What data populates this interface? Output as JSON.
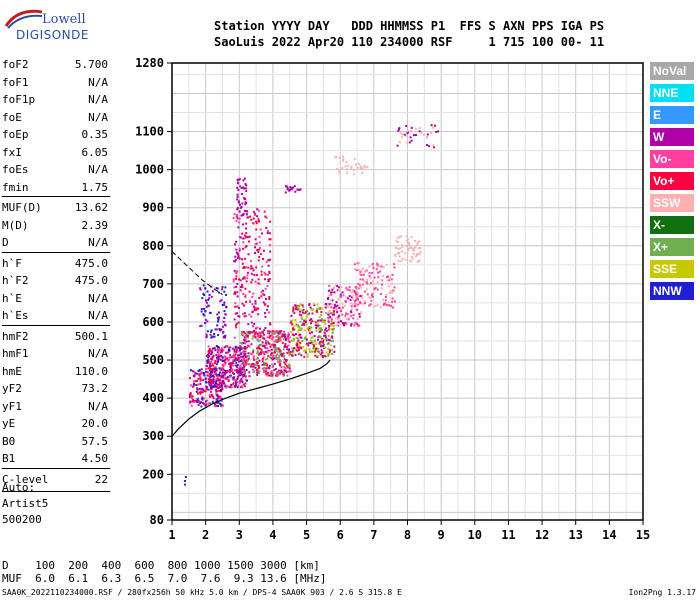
{
  "logo": {
    "line1": "Lowell",
    "line2": "DIGISONDE"
  },
  "header": {
    "line1": "Station YYYY DAY   DDD HHMMSS P1  FFS S AXN PPS IGA PS",
    "line2": "SaoLuis 2022 Apr20 110 234000 RSF     1 715 100 00- 11"
  },
  "params": [
    {
      "name": "foF2",
      "value": "5.700"
    },
    {
      "name": "foF1",
      "value": "N/A"
    },
    {
      "name": "foF1p",
      "value": "N/A"
    },
    {
      "name": "foE",
      "value": "N/A"
    },
    {
      "name": "foEp",
      "value": "0.35"
    },
    {
      "name": "fxI",
      "value": "6.05"
    },
    {
      "name": "foEs",
      "value": "N/A"
    },
    {
      "name": "fmin",
      "value": "1.75"
    },
    {
      "name": "MUF(D)",
      "value": "13.62"
    },
    {
      "name": "M(D)",
      "value": "2.39"
    },
    {
      "name": "D",
      "value": "N/A"
    },
    {
      "name": "h`F",
      "value": "475.0"
    },
    {
      "name": "h`F2",
      "value": "475.0"
    },
    {
      "name": "h`E",
      "value": "N/A"
    },
    {
      "name": "h`Es",
      "value": "N/A"
    },
    {
      "name": "hmF2",
      "value": "500.1"
    },
    {
      "name": "hmF1",
      "value": "N/A"
    },
    {
      "name": "hmE",
      "value": "110.0"
    },
    {
      "name": "yF2",
      "value": "73.2"
    },
    {
      "name": "yF1",
      "value": "N/A"
    },
    {
      "name": "yE",
      "value": "20.0"
    },
    {
      "name": "B0",
      "value": "57.5"
    },
    {
      "name": "B1",
      "value": "4.50"
    },
    {
      "name": "C-level",
      "value": "22"
    }
  ],
  "auto": [
    "Auto:",
    "Artist5",
    "500200"
  ],
  "legend": [
    {
      "label": "NoVal",
      "color": "#a8a8a8"
    },
    {
      "label": "NNE",
      "color": "#00e0f0"
    },
    {
      "label": "E",
      "color": "#3399ff"
    },
    {
      "label": "W",
      "color": "#b000a8"
    },
    {
      "label": "Vo-",
      "color": "#ff40a0"
    },
    {
      "label": "Vo+",
      "color": "#ff0040"
    },
    {
      "label": "SSW",
      "color": "#ffb0b0"
    },
    {
      "label": "X-",
      "color": "#107010"
    },
    {
      "label": "X+",
      "color": "#70b050"
    },
    {
      "label": "SSE",
      "color": "#c8c800"
    },
    {
      "label": "NNW",
      "color": "#2020d0"
    }
  ],
  "bottom": {
    "d_line": "D    100  200  400  600  800 1000 1500 3000 [km]",
    "muf_line": "MUF  6.0  6.1  6.3  6.5  7.0  7.6  9.3 13.6 [MHz]"
  },
  "footer": {
    "left": "SAA0K_2022110234000.RSF / 280fx256h 50 kHz 5.0 km / DPS-4 SAA0K 903 / 2.6 S 315.8 E",
    "right": "Ion2Png 1.3.17"
  },
  "chart_data": {
    "type": "scatter",
    "xlabel": "",
    "ylabel": "",
    "xlim": [
      1,
      15
    ],
    "ylim": [
      80,
      1280
    ],
    "xticks": [
      "1",
      "2",
      "3",
      "4",
      "5",
      "6",
      "7",
      "8",
      "9",
      "10",
      "11",
      "12",
      "13",
      "14",
      "15"
    ],
    "yticks": [
      {
        "v": 80,
        "t": "80"
      },
      {
        "v": 200,
        "t": "200"
      },
      {
        "v": 300,
        "t": "300"
      },
      {
        "v": 400,
        "t": "400"
      },
      {
        "v": 500,
        "t": "500"
      },
      {
        "v": 600,
        "t": "600"
      },
      {
        "v": 700,
        "t": "700"
      },
      {
        "v": 800,
        "t": "800"
      },
      {
        "v": 900,
        "t": "900"
      },
      {
        "v": 1000,
        "t": "1000"
      },
      {
        "v": 1100,
        "t": "1100"
      },
      {
        "v": 1280,
        "t": "1280"
      }
    ],
    "grid": true,
    "profile": [
      {
        "f": 1.0,
        "h": 300
      },
      {
        "f": 1.2,
        "h": 320
      },
      {
        "f": 1.5,
        "h": 345
      },
      {
        "f": 1.8,
        "h": 365
      },
      {
        "f": 2.2,
        "h": 385
      },
      {
        "f": 2.6,
        "h": 400
      },
      {
        "f": 3.0,
        "h": 413
      },
      {
        "f": 3.5,
        "h": 425
      },
      {
        "f": 4.0,
        "h": 437
      },
      {
        "f": 4.5,
        "h": 450
      },
      {
        "f": 5.0,
        "h": 465
      },
      {
        "f": 5.4,
        "h": 478
      },
      {
        "f": 5.6,
        "h": 490
      },
      {
        "f": 5.7,
        "h": 500
      }
    ],
    "dashed_profile": [
      {
        "f": 1.0,
        "h": 785
      },
      {
        "f": 1.3,
        "h": 760
      },
      {
        "f": 1.6,
        "h": 735
      },
      {
        "f": 1.9,
        "h": 710
      },
      {
        "f": 2.2,
        "h": 690
      },
      {
        "f": 2.5,
        "h": 672
      }
    ],
    "trace_clusters": [
      {
        "f": [
          1.5,
          2.5
        ],
        "h": [
          380,
          480
        ],
        "n": 220,
        "colors": [
          "#b000a8",
          "#ff0040",
          "#2020d0",
          "#ff40a0"
        ]
      },
      {
        "f": [
          2.0,
          3.2
        ],
        "h": [
          430,
          540
        ],
        "n": 380,
        "colors": [
          "#b000a8",
          "#ff0040",
          "#ff40a0",
          "#2020d0"
        ]
      },
      {
        "f": [
          3.0,
          4.5
        ],
        "h": [
          460,
          580
        ],
        "n": 420,
        "colors": [
          "#ff0040",
          "#b000a8",
          "#ff40a0",
          "#70b050"
        ]
      },
      {
        "f": [
          4.5,
          5.8
        ],
        "h": [
          510,
          650
        ],
        "n": 320,
        "colors": [
          "#b000a8",
          "#ff0040",
          "#70b050",
          "#c8c800"
        ]
      },
      {
        "f": [
          5.6,
          6.6
        ],
        "h": [
          590,
          700
        ],
        "n": 160,
        "colors": [
          "#ff40a0",
          "#b000a8",
          "#ffb0b0"
        ]
      },
      {
        "f": [
          6.4,
          7.6
        ],
        "h": [
          640,
          760
        ],
        "n": 120,
        "colors": [
          "#ffb0b0",
          "#ff40a0"
        ]
      },
      {
        "f": [
          7.6,
          8.4
        ],
        "h": [
          760,
          830
        ],
        "n": 60,
        "colors": [
          "#ffb0b0"
        ]
      },
      {
        "f": [
          2.8,
          3.9
        ],
        "h": [
          560,
          900
        ],
        "n": 260,
        "colors": [
          "#b000a8",
          "#ff40a0",
          "#ff0040"
        ]
      },
      {
        "f": [
          2.9,
          3.2
        ],
        "h": [
          880,
          980
        ],
        "n": 40,
        "colors": [
          "#b000a8"
        ]
      },
      {
        "f": [
          1.8,
          2.6
        ],
        "h": [
          560,
          700
        ],
        "n": 90,
        "colors": [
          "#b000a8",
          "#2020d0"
        ]
      },
      {
        "f": [
          4.3,
          4.8
        ],
        "h": [
          940,
          960
        ],
        "n": 18,
        "colors": [
          "#b000a8"
        ]
      },
      {
        "f": [
          5.8,
          6.8
        ],
        "h": [
          990,
          1040
        ],
        "n": 30,
        "colors": [
          "#ffb0b0"
        ]
      },
      {
        "f": [
          7.6,
          8.9
        ],
        "h": [
          1060,
          1120
        ],
        "n": 40,
        "colors": [
          "#ffb0b0",
          "#b000a8"
        ]
      },
      {
        "f": [
          1.3,
          1.4
        ],
        "h": [
          170,
          200
        ],
        "n": 3,
        "colors": [
          "#2020d0"
        ]
      }
    ]
  }
}
